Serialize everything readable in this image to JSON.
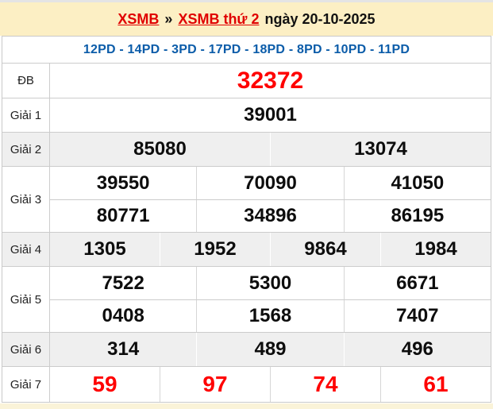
{
  "page": {
    "top_breadcrumb": {
      "link_xsmb": "XSMB",
      "separator": "»",
      "link_day": "XSMB thứ 2",
      "date_text": "ngày 20-10-2025"
    },
    "head_numbers": "12PD - 14PD - 3PD - 17PD - 18PD - 8PD - 10PD - 11PD"
  },
  "results": {
    "rows": [
      {
        "id": "db",
        "label": "ĐB",
        "shade": false,
        "highlight": true,
        "groups": [
          [
            "32372"
          ]
        ]
      },
      {
        "id": "g1",
        "label": "Giải 1",
        "shade": false,
        "highlight": false,
        "groups": [
          [
            "39001"
          ]
        ]
      },
      {
        "id": "g2",
        "label": "Giải 2",
        "shade": true,
        "highlight": false,
        "groups": [
          [
            "85080",
            "13074"
          ]
        ]
      },
      {
        "id": "g3",
        "label": "Giải 3",
        "shade": false,
        "highlight": false,
        "groups": [
          [
            "39550",
            "70090",
            "41050"
          ],
          [
            "80771",
            "34896",
            "86195"
          ]
        ]
      },
      {
        "id": "g4",
        "label": "Giải 4",
        "shade": true,
        "highlight": false,
        "groups": [
          [
            "1305",
            "1952",
            "9864",
            "1984"
          ]
        ]
      },
      {
        "id": "g5",
        "label": "Giải 5",
        "shade": false,
        "highlight": false,
        "groups": [
          [
            "7522",
            "5300",
            "6671"
          ],
          [
            "0408",
            "1568",
            "7407"
          ]
        ]
      },
      {
        "id": "g6",
        "label": "Giải 6",
        "shade": true,
        "highlight": false,
        "groups": [
          [
            "314",
            "489",
            "496"
          ]
        ]
      },
      {
        "id": "g7",
        "label": "Giải 7",
        "shade": false,
        "highlight": true,
        "groups": [
          [
            "59",
            "97",
            "74",
            "61"
          ]
        ]
      }
    ]
  },
  "colors": {
    "header_band_bg": "#fcefc4",
    "page_bottom_bg": "#faf3d8",
    "link_red": "#e00000",
    "special_number_red": "#ff0000",
    "head_numbers_blue": "#0b5ca9",
    "shade_row_bg": "#efefef",
    "border_gray": "#cccccc"
  }
}
